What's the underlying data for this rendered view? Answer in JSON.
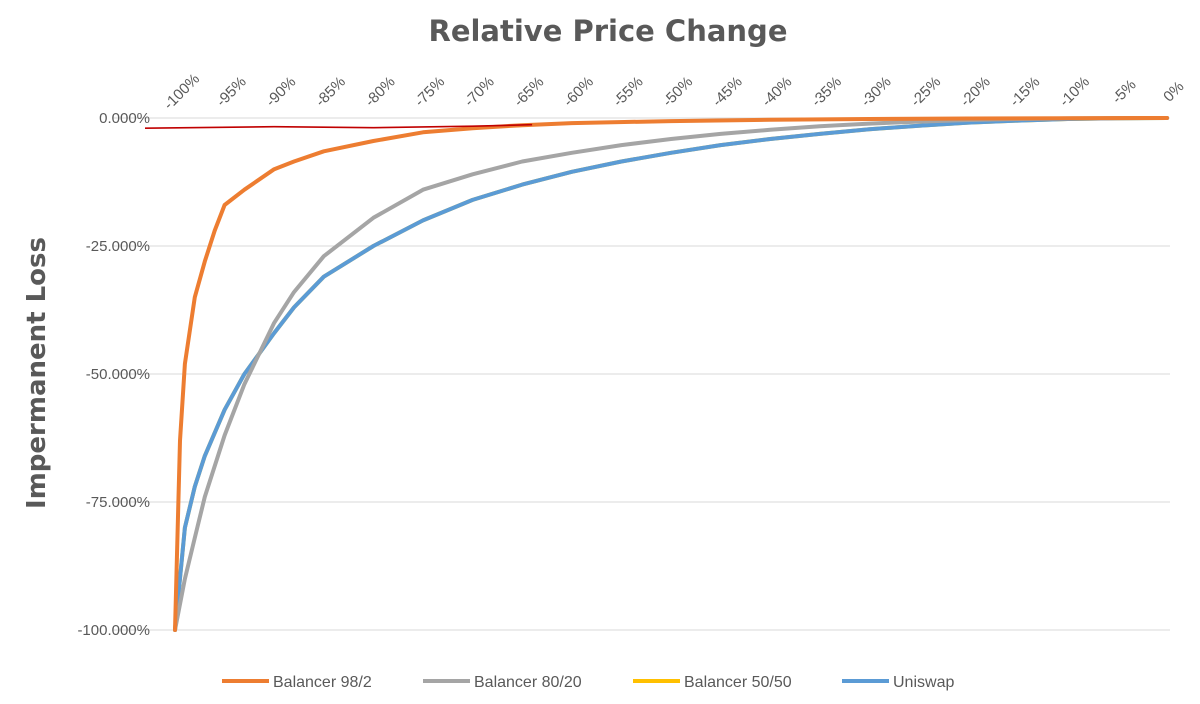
{
  "chart_data": {
    "type": "line",
    "title": "Relative Price Change",
    "ylabel": "Impermanent Loss",
    "xlabel": "",
    "x_ticks": [
      "-100%",
      "-95%",
      "-90%",
      "-85%",
      "-80%",
      "-75%",
      "-70%",
      "-65%",
      "-60%",
      "-55%",
      "-50%",
      "-45%",
      "-40%",
      "-35%",
      "-30%",
      "-25%",
      "-20%",
      "-15%",
      "-10%",
      "-5%",
      "0%"
    ],
    "y_ticks": [
      "0.000%",
      "-25.000%",
      "-50.000%",
      "-75.000%",
      "-100.000%"
    ],
    "xlim": [
      -100,
      0
    ],
    "ylim": [
      -100,
      0
    ],
    "x_axis_position": "top",
    "grid": true,
    "legend_position": "bottom",
    "series": [
      {
        "name": "Balancer 98/2",
        "color": "#ED7D31",
        "x": [
          -100,
          -99.5,
          -99,
          -98,
          -97,
          -96,
          -95,
          -93,
          -90,
          -88,
          -85,
          -80,
          -75,
          -70,
          -65,
          -60,
          -50,
          -40,
          -30,
          -20,
          -10,
          0
        ],
        "y": [
          -100,
          -63,
          -48,
          -35,
          -28,
          -22,
          -17,
          -14,
          -10,
          -8.5,
          -6.5,
          -4.5,
          -2.8,
          -2.0,
          -1.4,
          -1.0,
          -0.6,
          -0.35,
          -0.2,
          -0.1,
          -0.03,
          0
        ]
      },
      {
        "name": "Balancer 80/20",
        "color": "#A5A5A5",
        "x": [
          -100,
          -99,
          -98,
          -97,
          -95,
          -93,
          -90,
          -88,
          -85,
          -80,
          -75,
          -70,
          -65,
          -60,
          -55,
          -50,
          -45,
          -40,
          -35,
          -30,
          -25,
          -20,
          -15,
          -10,
          -5,
          0
        ],
        "y": [
          -100,
          -90,
          -82,
          -74,
          -62,
          -52,
          -40,
          -34,
          -27,
          -19.5,
          -14,
          -11,
          -8.5,
          -6.8,
          -5.3,
          -4.1,
          -3.1,
          -2.3,
          -1.6,
          -1.1,
          -0.7,
          -0.4,
          -0.2,
          -0.07,
          -0.02,
          0
        ]
      },
      {
        "name": "Balancer 50/50",
        "color": "#FFC000",
        "x": [
          -100,
          -99,
          -98,
          -97,
          -95,
          -93,
          -90,
          -88,
          -85,
          -80,
          -75,
          -70,
          -65,
          -60,
          -55,
          -50,
          -45,
          -40,
          -35,
          -30,
          -25,
          -20,
          -15,
          -10,
          -5,
          0
        ],
        "y": [
          -100,
          -80,
          -72,
          -66,
          -57,
          -50,
          -42,
          -37,
          -31,
          -25,
          -20,
          -16,
          -13,
          -10.5,
          -8.5,
          -6.8,
          -5.3,
          -4.1,
          -3.1,
          -2.2,
          -1.5,
          -0.9,
          -0.5,
          -0.2,
          -0.05,
          0
        ]
      },
      {
        "name": "Uniswap",
        "color": "#5B9BD5",
        "x": [
          -100,
          -99,
          -98,
          -97,
          -95,
          -93,
          -90,
          -88,
          -85,
          -80,
          -75,
          -70,
          -65,
          -60,
          -55,
          -50,
          -45,
          -40,
          -35,
          -30,
          -25,
          -20,
          -15,
          -10,
          -5,
          0
        ],
        "y": [
          -100,
          -80,
          -72,
          -66,
          -57,
          -50,
          -42,
          -37,
          -31,
          -25,
          -20,
          -16,
          -13,
          -10.5,
          -8.5,
          -6.8,
          -5.3,
          -4.1,
          -3.1,
          -2.2,
          -1.5,
          -0.9,
          -0.5,
          -0.2,
          -0.05,
          0
        ]
      }
    ],
    "annotation_line": {
      "color": "#C00000",
      "x": [
        -100,
        -90,
        -80,
        -70,
        -64
      ],
      "y": [
        -2.0,
        -1.7,
        -1.9,
        -1.6,
        -1.3
      ]
    }
  }
}
